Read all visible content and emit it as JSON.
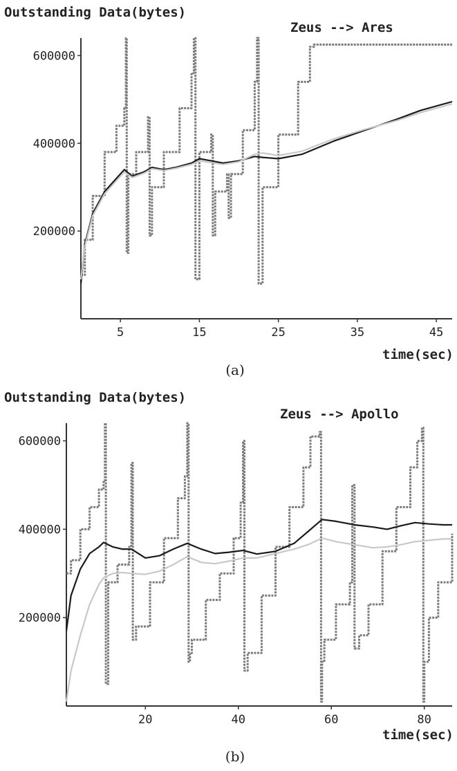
{
  "chart_data": [
    {
      "type": "line",
      "panel_label": "(a)",
      "title": "Outstanding Data(bytes)",
      "annotation": "Zeus --> Ares",
      "xlabel": "time(sec)",
      "ylabel": "",
      "xlim": [
        0,
        47
      ],
      "ylim": [
        0,
        640000
      ],
      "xticks": [
        5,
        15,
        25,
        35,
        45
      ],
      "yticks": [
        200000,
        400000,
        600000
      ],
      "grid": false,
      "series": [
        {
          "name": "",
          "color": "#7a7a7a",
          "style": "stepped",
          "x": [
            0,
            0.5,
            1.5,
            3,
            4.5,
            5.5,
            5.7,
            5.8,
            6,
            7,
            8.5,
            8.7,
            9,
            10.5,
            12.5,
            14,
            14.3,
            14.5,
            15,
            16.5,
            16.7,
            17,
            18.5,
            18.7,
            19,
            20.5,
            22,
            22.3,
            22.5,
            23,
            25,
            27.5,
            29,
            29.5,
            30,
            35,
            40,
            47
          ],
          "y": [
            100000,
            180000,
            280000,
            380000,
            440000,
            480000,
            640000,
            150000,
            330000,
            380000,
            460000,
            190000,
            300000,
            380000,
            480000,
            560000,
            640000,
            90000,
            380000,
            420000,
            190000,
            290000,
            330000,
            230000,
            330000,
            430000,
            540000,
            640000,
            80000,
            300000,
            420000,
            540000,
            620000,
            625000,
            625000,
            625000,
            625000,
            625000
          ]
        },
        {
          "name": "",
          "color": "#1a1a1a",
          "style": "smooth",
          "x": [
            0,
            0.5,
            1.5,
            3,
            4.5,
            5.5,
            6.5,
            8,
            9,
            10.5,
            12,
            14,
            15,
            16.5,
            18,
            20,
            22,
            23,
            25,
            28,
            32,
            36,
            40,
            43,
            47
          ],
          "y": [
            80000,
            170000,
            240000,
            290000,
            320000,
            340000,
            325000,
            335000,
            345000,
            340000,
            345000,
            355000,
            365000,
            360000,
            355000,
            360000,
            370000,
            368000,
            365000,
            375000,
            405000,
            430000,
            455000,
            475000,
            495000
          ]
        },
        {
          "name": "",
          "color": "#c8c8c8",
          "style": "smooth",
          "x": [
            0,
            0.5,
            1.5,
            3,
            4.5,
            5.5,
            6.5,
            8,
            9,
            10.5,
            12,
            14,
            15,
            16.5,
            18,
            20,
            22,
            23,
            25,
            28,
            32,
            36,
            40,
            43,
            47
          ],
          "y": [
            90000,
            165000,
            235000,
            285000,
            315000,
            335000,
            322000,
            332000,
            342000,
            338000,
            343000,
            352000,
            360000,
            356000,
            352000,
            358000,
            375000,
            378000,
            372000,
            382000,
            410000,
            432000,
            452000,
            470000,
            490000
          ]
        }
      ]
    },
    {
      "type": "line",
      "panel_label": "(b)",
      "title": "Outstanding Data(bytes)",
      "annotation": "Zeus --> Apollo",
      "xlabel": "time(sec)",
      "ylabel": "",
      "xlim": [
        3,
        86
      ],
      "ylim": [
        0,
        640000
      ],
      "xticks": [
        20,
        40,
        60,
        80
      ],
      "yticks": [
        200000,
        400000,
        600000
      ],
      "grid": false,
      "series": [
        {
          "name": "",
          "color": "#7a7a7a",
          "style": "stepped",
          "x": [
            3,
            4,
            6,
            8,
            10,
            11,
            11.3,
            11.5,
            12,
            14,
            16.5,
            17,
            17.3,
            18,
            21,
            24,
            27,
            28.5,
            29,
            29.3,
            29.6,
            30,
            33,
            36,
            39,
            40.5,
            41,
            41.3,
            42,
            45,
            48,
            51,
            54,
            55.5,
            57.5,
            57.8,
            58,
            58.5,
            61,
            64,
            64.5,
            65,
            66,
            68,
            71,
            74,
            77,
            78.5,
            79.5,
            79.8,
            80,
            81,
            83,
            86
          ],
          "y": [
            300000,
            330000,
            400000,
            450000,
            490000,
            510000,
            640000,
            50000,
            280000,
            320000,
            360000,
            550000,
            150000,
            180000,
            280000,
            380000,
            470000,
            520000,
            640000,
            100000,
            120000,
            150000,
            240000,
            300000,
            380000,
            460000,
            600000,
            80000,
            120000,
            250000,
            360000,
            450000,
            540000,
            610000,
            620000,
            10000,
            100000,
            150000,
            230000,
            280000,
            500000,
            130000,
            160000,
            230000,
            350000,
            450000,
            540000,
            600000,
            630000,
            10000,
            100000,
            200000,
            280000,
            390000
          ]
        },
        {
          "name": "",
          "color": "#1a1a1a",
          "style": "smooth",
          "x": [
            3,
            4,
            6,
            8,
            10,
            11,
            13,
            15,
            17,
            20,
            23,
            26,
            29,
            32,
            35,
            38,
            41,
            44,
            48,
            52,
            55,
            58,
            61,
            65,
            69,
            72,
            75,
            78,
            81,
            84,
            86
          ],
          "y": [
            170000,
            250000,
            310000,
            345000,
            360000,
            370000,
            360000,
            355000,
            355000,
            335000,
            340000,
            355000,
            368000,
            355000,
            345000,
            348000,
            352000,
            344000,
            350000,
            368000,
            395000,
            422000,
            418000,
            410000,
            405000,
            400000,
            408000,
            415000,
            412000,
            410000,
            410000
          ]
        },
        {
          "name": "",
          "color": "#c8c8c8",
          "style": "smooth",
          "x": [
            3,
            4,
            6,
            8,
            10,
            11,
            13,
            15,
            17,
            20,
            23,
            26,
            29,
            32,
            35,
            38,
            41,
            44,
            48,
            52,
            55,
            58,
            61,
            65,
            69,
            72,
            75,
            78,
            81,
            84,
            86
          ],
          "y": [
            10000,
            80000,
            160000,
            230000,
            275000,
            290000,
            300000,
            302000,
            300000,
            298000,
            305000,
            320000,
            338000,
            325000,
            322000,
            328000,
            335000,
            335000,
            345000,
            355000,
            365000,
            380000,
            372000,
            365000,
            358000,
            360000,
            365000,
            372000,
            375000,
            378000,
            378000
          ]
        }
      ]
    }
  ]
}
